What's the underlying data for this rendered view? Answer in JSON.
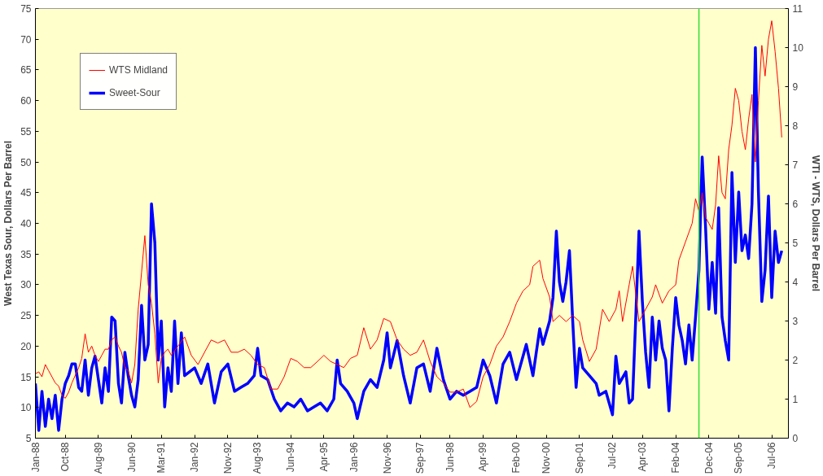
{
  "chart_data": {
    "type": "line",
    "ylabel": "West Texas Sour, Dollars Per Barrel",
    "y2label": "WTI - WTS, Dollars Per Barrel",
    "xlim": [
      "1988-01",
      "2006-12"
    ],
    "ylim": [
      5,
      75
    ],
    "yticks": [
      5,
      10,
      15,
      20,
      25,
      30,
      35,
      40,
      45,
      50,
      55,
      60,
      65,
      70,
      75
    ],
    "y2lim": [
      0,
      11
    ],
    "y2ticks": [
      0,
      1,
      2,
      3,
      4,
      5,
      6,
      7,
      8,
      9,
      10,
      11
    ],
    "xticks": [
      {
        "value": "1988-01",
        "label": "Jan-88"
      },
      {
        "value": "1988-10",
        "label": "Oct-88"
      },
      {
        "value": "1989-08",
        "label": "Aug-89"
      },
      {
        "value": "1990-06",
        "label": "Jun-90"
      },
      {
        "value": "1991-03",
        "label": "Mar-91"
      },
      {
        "value": "1992-01",
        "label": "Jan-92"
      },
      {
        "value": "1992-11",
        "label": "Nov-92"
      },
      {
        "value": "1993-08",
        "label": "Aug-93"
      },
      {
        "value": "1994-06",
        "label": "Jun-94"
      },
      {
        "value": "1995-04",
        "label": "Apr-95"
      },
      {
        "value": "1996-01",
        "label": "Jan-96"
      },
      {
        "value": "1996-11",
        "label": "Nov-96"
      },
      {
        "value": "1997-09",
        "label": "Sep-97"
      },
      {
        "value": "1998-06",
        "label": "Jun-98"
      },
      {
        "value": "1999-04",
        "label": "Apr-99"
      },
      {
        "value": "2000-02",
        "label": "Feb-00"
      },
      {
        "value": "2000-11",
        "label": "Nov-00"
      },
      {
        "value": "2001-09",
        "label": "Sep-01"
      },
      {
        "value": "2002-07",
        "label": "Jul-02"
      },
      {
        "value": "2003-04",
        "label": "Apr-03"
      },
      {
        "value": "2004-02",
        "label": "Feb-04"
      },
      {
        "value": "2004-12",
        "label": "Dec-04"
      },
      {
        "value": "2005-09",
        "label": "Sep-05"
      },
      {
        "value": "2006-07",
        "label": "Jul-06"
      }
    ],
    "grid": false,
    "legend": "top left",
    "marker": "none",
    "ref_lines": [
      {
        "axis": "x",
        "value": "2004-09",
        "color": "#33dd33"
      }
    ],
    "series": [
      {
        "name": "WTS Midland",
        "color": "#ff0000",
        "x": [
          "1988-01",
          "1988-02",
          "1988-03",
          "1988-04",
          "1988-05",
          "1988-06",
          "1988-07",
          "1988-08",
          "1988-09",
          "1988-10",
          "1988-11",
          "1988-12",
          "1989-02",
          "1989-03",
          "1989-04",
          "1989-05",
          "1989-06",
          "1989-07",
          "1989-08",
          "1989-09",
          "1989-10",
          "1989-11",
          "1989-12",
          "1990-01",
          "1990-02",
          "1990-03",
          "1990-04",
          "1990-05",
          "1990-06",
          "1990-07",
          "1990-08",
          "1990-09",
          "1990-10",
          "1990-11",
          "1990-12",
          "1991-01",
          "1991-02",
          "1991-03",
          "1991-04",
          "1991-05",
          "1991-06",
          "1991-08",
          "1991-10",
          "1991-12",
          "1992-02",
          "1992-04",
          "1992-06",
          "1992-08",
          "1992-10",
          "1992-12",
          "1993-02",
          "1993-04",
          "1993-06",
          "1993-08",
          "1993-10",
          "1993-12",
          "1994-02",
          "1994-04",
          "1994-06",
          "1994-08",
          "1994-10",
          "1994-12",
          "1995-02",
          "1995-04",
          "1995-06",
          "1995-08",
          "1995-10",
          "1995-12",
          "1996-02",
          "1996-04",
          "1996-06",
          "1996-08",
          "1996-10",
          "1996-12",
          "1997-02",
          "1997-04",
          "1997-06",
          "1997-08",
          "1997-10",
          "1997-12",
          "1998-02",
          "1998-04",
          "1998-06",
          "1998-08",
          "1998-10",
          "1998-12",
          "1999-02",
          "1999-04",
          "1999-06",
          "1999-08",
          "1999-10",
          "1999-12",
          "2000-02",
          "2000-04",
          "2000-06",
          "2000-07",
          "2000-09",
          "2000-10",
          "2000-12",
          "2001-01",
          "2001-03",
          "2001-05",
          "2001-07",
          "2001-09",
          "2001-10",
          "2001-12",
          "2002-02",
          "2002-04",
          "2002-06",
          "2002-08",
          "2002-09",
          "2002-10",
          "2002-12",
          "2003-01",
          "2003-03",
          "2003-05",
          "2003-07",
          "2003-08",
          "2003-10",
          "2003-12",
          "2004-02",
          "2004-03",
          "2004-05",
          "2004-07",
          "2004-08",
          "2004-09",
          "2004-10",
          "2004-11",
          "2004-12",
          "2005-01",
          "2005-02",
          "2005-03",
          "2005-04",
          "2005-05",
          "2005-06",
          "2005-07",
          "2005-08",
          "2005-09",
          "2005-10",
          "2005-11",
          "2005-12",
          "2006-01",
          "2006-02",
          "2006-03",
          "2006-04",
          "2006-05",
          "2006-06",
          "2006-07",
          "2006-08",
          "2006-09",
          "2006-10"
        ],
        "values": [
          15.5,
          15.8,
          15,
          17,
          16,
          15,
          14,
          13.5,
          12,
          11.5,
          12.5,
          14,
          16.5,
          18,
          22,
          19,
          20,
          18.5,
          17.5,
          18.5,
          19.5,
          19.5,
          21,
          21.5,
          20,
          19,
          16.5,
          16,
          14,
          17,
          26,
          32,
          38,
          30,
          27,
          22,
          14,
          18,
          19,
          19.5,
          18.5,
          20,
          21.5,
          18.5,
          17,
          19,
          21,
          20.5,
          21,
          19,
          19,
          19.5,
          18.5,
          17,
          16.5,
          13,
          13,
          15,
          18,
          17.5,
          16.5,
          16.5,
          17.5,
          18.5,
          17.5,
          17,
          16.5,
          18,
          18.5,
          23,
          19.5,
          21,
          24.5,
          24,
          21,
          19.5,
          18.5,
          19,
          21,
          17.5,
          15,
          14,
          12.5,
          12.5,
          13,
          10,
          11,
          15,
          17,
          20,
          21.5,
          24,
          27,
          29,
          30,
          33,
          34,
          31,
          28,
          24,
          25,
          24,
          25,
          24,
          21,
          17.5,
          19.5,
          26,
          24,
          26,
          29,
          24,
          30,
          33,
          24,
          26,
          28,
          30,
          27,
          29,
          30,
          34,
          37,
          40,
          44,
          42,
          45,
          41,
          40,
          39,
          43,
          51,
          45,
          44,
          52,
          56,
          62,
          60,
          55,
          52,
          57,
          61,
          50,
          60,
          69,
          64,
          70,
          73,
          68,
          62,
          54
        ]
      },
      {
        "name": "Sweet-Sour",
        "color": "#0000ff",
        "axis": "y2",
        "x": [
          "1988-01",
          "1988-02",
          "1988-03",
          "1988-04",
          "1988-05",
          "1988-06",
          "1988-07",
          "1988-08",
          "1988-09",
          "1988-10",
          "1988-11",
          "1988-12",
          "1989-01",
          "1989-02",
          "1989-03",
          "1989-04",
          "1989-05",
          "1989-06",
          "1989-07",
          "1989-08",
          "1989-09",
          "1989-10",
          "1989-11",
          "1989-12",
          "1990-01",
          "1990-02",
          "1990-03",
          "1990-04",
          "1990-05",
          "1990-06",
          "1990-07",
          "1990-08",
          "1990-09",
          "1990-10",
          "1990-11",
          "1990-12",
          "1991-01",
          "1991-02",
          "1991-03",
          "1991-04",
          "1991-05",
          "1991-06",
          "1991-07",
          "1991-08",
          "1991-09",
          "1991-10",
          "1992-01",
          "1992-03",
          "1992-05",
          "1992-07",
          "1992-09",
          "1992-11",
          "1993-01",
          "1993-03",
          "1993-05",
          "1993-07",
          "1993-08",
          "1993-09",
          "1993-11",
          "1994-01",
          "1994-03",
          "1994-05",
          "1994-07",
          "1994-09",
          "1994-11",
          "1995-01",
          "1995-03",
          "1995-05",
          "1995-07",
          "1995-08",
          "1995-09",
          "1995-11",
          "1996-01",
          "1996-02",
          "1996-04",
          "1996-06",
          "1996-08",
          "1996-10",
          "1996-11",
          "1996-12",
          "1997-02",
          "1997-04",
          "1997-06",
          "1997-08",
          "1997-10",
          "1997-12",
          "1998-02",
          "1998-04",
          "1998-06",
          "1998-08",
          "1998-10",
          "1998-12",
          "1999-02",
          "1999-04",
          "1999-06",
          "1999-08",
          "1999-10",
          "1999-12",
          "2000-02",
          "2000-04",
          "2000-05",
          "2000-07",
          "2000-09",
          "2000-10",
          "2000-12",
          "2001-01",
          "2001-02",
          "2001-03",
          "2001-04",
          "2001-05",
          "2001-06",
          "2001-07",
          "2001-08",
          "2001-09",
          "2001-10",
          "2001-12",
          "2002-02",
          "2002-03",
          "2002-05",
          "2002-07",
          "2002-08",
          "2002-09",
          "2002-11",
          "2002-12",
          "2003-01",
          "2003-02",
          "2003-03",
          "2003-04",
          "2003-05",
          "2003-06",
          "2003-07",
          "2003-08",
          "2003-09",
          "2003-10",
          "2003-11",
          "2003-12",
          "2004-01",
          "2004-02",
          "2004-03",
          "2004-04",
          "2004-05",
          "2004-06",
          "2004-07",
          "2004-08",
          "2004-09",
          "2004-10",
          "2004-11",
          "2004-12",
          "2005-01",
          "2005-02",
          "2005-03",
          "2005-04",
          "2005-05",
          "2005-06",
          "2005-07",
          "2005-08",
          "2005-09",
          "2005-10",
          "2005-11",
          "2005-12",
          "2006-01",
          "2006-02",
          "2006-03",
          "2006-04",
          "2006-05",
          "2006-06",
          "2006-07",
          "2006-08",
          "2006-09",
          "2006-10"
        ],
        "values": [
          1.4,
          0.2,
          1.2,
          0.3,
          1.0,
          0.5,
          1.1,
          0.2,
          1.0,
          1.4,
          1.6,
          1.9,
          1.9,
          1.3,
          1.2,
          2.0,
          1.1,
          1.8,
          2.1,
          1.5,
          0.9,
          1.8,
          1.2,
          3.1,
          3.0,
          1.4,
          0.9,
          2.2,
          1.6,
          1.1,
          0.8,
          1.5,
          3.4,
          2.0,
          2.4,
          6.0,
          5.0,
          2.0,
          3.0,
          0.8,
          1.8,
          1.2,
          3.0,
          1.4,
          2.7,
          1.6,
          1.8,
          1.4,
          1.9,
          0.9,
          1.7,
          1.9,
          1.2,
          1.3,
          1.4,
          1.6,
          2.3,
          1.6,
          1.5,
          1.0,
          0.7,
          0.9,
          0.8,
          1.0,
          0.7,
          0.8,
          0.9,
          0.7,
          1.0,
          2.0,
          1.4,
          1.2,
          0.9,
          0.5,
          1.2,
          1.5,
          1.3,
          2.0,
          2.7,
          1.8,
          2.5,
          1.6,
          0.9,
          1.8,
          1.9,
          1.2,
          2.3,
          1.5,
          1.0,
          1.2,
          1.1,
          1.2,
          1.3,
          2.0,
          1.6,
          0.9,
          1.9,
          2.2,
          1.5,
          2.1,
          2.4,
          1.6,
          2.8,
          2.4,
          3.0,
          3.6,
          5.3,
          4.0,
          3.5,
          4.0,
          4.8,
          3.0,
          1.3,
          2.3,
          1.8,
          1.6,
          1.4,
          1.1,
          1.2,
          0.6,
          2.1,
          1.4,
          1.7,
          0.9,
          1.0,
          3.2,
          5.3,
          3.5,
          2.2,
          1.3,
          3.1,
          2.0,
          3.0,
          2.3,
          2.0,
          0.7,
          2.3,
          3.6,
          2.9,
          2.5,
          1.9,
          2.9,
          2.0,
          3.1,
          4.3,
          7.2,
          5.4,
          3.3,
          4.5,
          3.2,
          5.9,
          3.1,
          2.5,
          2.0,
          6.8,
          4.5,
          6.3,
          4.8,
          5.2,
          4.6,
          6.0,
          10.0,
          6.3,
          3.5,
          4.3,
          6.2,
          3.6,
          5.3,
          4.5,
          4.8
        ]
      }
    ]
  }
}
